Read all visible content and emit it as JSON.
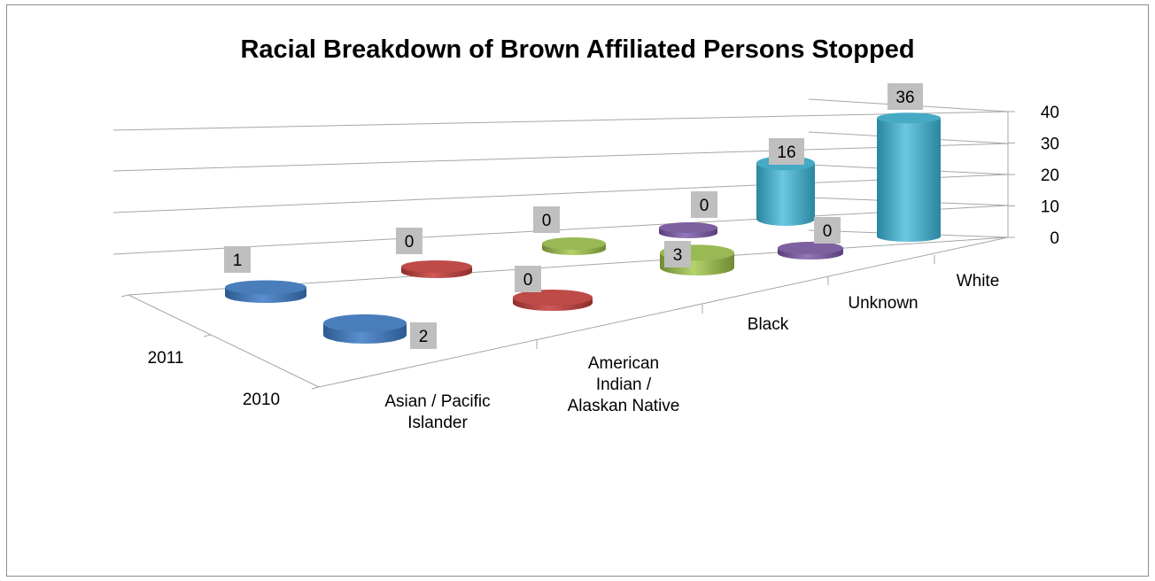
{
  "chart_data": {
    "type": "bar",
    "subtype": "3d-cylinder",
    "title": "Racial Breakdown of Brown Affiliated Persons Stopped",
    "categories": [
      "Asian / Pacific Islander",
      "American Indian / Alaskan Native",
      "Black",
      "Unknown",
      "White"
    ],
    "category_lines": [
      [
        "Asian / Pacific",
        "Islander"
      ],
      [
        "American",
        "Indian /",
        "Alaskan Native"
      ],
      [
        "Black"
      ],
      [
        "Unknown"
      ],
      [
        "White"
      ]
    ],
    "series": [
      {
        "name": "2011",
        "values": [
          1,
          0,
          0,
          0,
          36
        ]
      },
      {
        "name": "2010",
        "values": [
          2,
          0,
          3,
          0,
          16
        ]
      }
    ],
    "ylim": [
      0,
      40
    ],
    "yticks": [
      "0",
      "10",
      "20",
      "30",
      "40"
    ],
    "grid": true,
    "colors": {
      "Asian / Pacific Islander": "#4a7ebb",
      "American Indian / Alaskan Native": "#be4b48",
      "Black": "#98b954",
      "Unknown": "#7d60a0",
      "White": "#46aac5",
      "label_box": "#bfbfbf"
    }
  }
}
